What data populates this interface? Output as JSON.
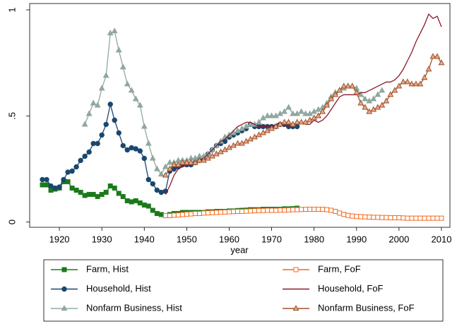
{
  "chart_data": {
    "type": "line",
    "x_label": "year",
    "xlim": [
      1913,
      2012
    ],
    "xticks": [
      1920,
      1930,
      1940,
      1950,
      1960,
      1970,
      1980,
      1990,
      2000,
      2010
    ],
    "ylim": [
      -0.025,
      1.03
    ],
    "yticks": [
      0,
      {
        "value": 0.5,
        "label": ".5"
      },
      1
    ],
    "legend": "bottom",
    "series": [
      {
        "name": "Farm, Hist",
        "color": "#1a7a1a",
        "marker": "square",
        "marker_fill": "#1a7a1a",
        "x": [
          1916,
          1917,
          1918,
          1919,
          1920,
          1921,
          1922,
          1923,
          1924,
          1925,
          1926,
          1927,
          1928,
          1929,
          1930,
          1931,
          1932,
          1933,
          1934,
          1935,
          1936,
          1937,
          1938,
          1939,
          1940,
          1941,
          1942,
          1943,
          1944,
          1945,
          1946,
          1947,
          1948,
          1949,
          1950,
          1951,
          1952,
          1953,
          1954,
          1955,
          1956,
          1957,
          1958,
          1959,
          1960,
          1961,
          1962,
          1963,
          1964,
          1965,
          1966,
          1967,
          1968,
          1969,
          1970,
          1971,
          1972,
          1973,
          1974,
          1975,
          1976
        ],
        "values": [
          0.175,
          0.175,
          0.15,
          0.155,
          0.16,
          0.19,
          0.19,
          0.16,
          0.15,
          0.14,
          0.125,
          0.13,
          0.13,
          0.12,
          0.13,
          0.14,
          0.17,
          0.16,
          0.135,
          0.12,
          0.1,
          0.095,
          0.1,
          0.09,
          0.08,
          0.075,
          0.055,
          0.04,
          0.035,
          0.03,
          0.035,
          0.04,
          0.04,
          0.045,
          0.045,
          0.045,
          0.045,
          0.045,
          0.045,
          0.048,
          0.048,
          0.05,
          0.05,
          0.05,
          0.052,
          0.052,
          0.054,
          0.055,
          0.056,
          0.058,
          0.058,
          0.058,
          0.06,
          0.06,
          0.06,
          0.06,
          0.06,
          0.062,
          0.062,
          0.063,
          0.065
        ]
      },
      {
        "name": "Household, Hist",
        "color": "#1a476f",
        "marker": "circle",
        "marker_fill": "#1a476f",
        "x": [
          1916,
          1917,
          1918,
          1919,
          1920,
          1921,
          1922,
          1923,
          1924,
          1925,
          1926,
          1927,
          1928,
          1929,
          1930,
          1931,
          1932,
          1933,
          1934,
          1935,
          1936,
          1937,
          1938,
          1939,
          1940,
          1941,
          1942,
          1943,
          1944,
          1945,
          1946,
          1947,
          1948,
          1949,
          1950,
          1951,
          1952,
          1953,
          1954,
          1955,
          1956,
          1957,
          1958,
          1959,
          1960,
          1961,
          1962,
          1963,
          1964,
          1965,
          1966,
          1967,
          1968,
          1969,
          1970,
          1971,
          1972,
          1973,
          1974,
          1975,
          1976
        ],
        "values": [
          0.2,
          0.2,
          0.17,
          0.16,
          0.165,
          0.2,
          0.235,
          0.24,
          0.26,
          0.29,
          0.31,
          0.33,
          0.37,
          0.37,
          0.41,
          0.46,
          0.555,
          0.48,
          0.42,
          0.36,
          0.34,
          0.35,
          0.345,
          0.335,
          0.3,
          0.2,
          0.18,
          0.15,
          0.14,
          0.145,
          0.24,
          0.25,
          0.26,
          0.27,
          0.27,
          0.27,
          0.28,
          0.29,
          0.3,
          0.32,
          0.34,
          0.36,
          0.37,
          0.38,
          0.4,
          0.41,
          0.42,
          0.43,
          0.44,
          0.46,
          0.45,
          0.45,
          0.45,
          0.45,
          0.45,
          0.45,
          0.46,
          0.46,
          0.45,
          0.45,
          0.45
        ]
      },
      {
        "name": "Nonfarm Business, Hist",
        "color": "#90a8a0",
        "marker": "triangle",
        "marker_fill": "#90a8a0",
        "x": [
          1926,
          1927,
          1928,
          1929,
          1930,
          1931,
          1932,
          1933,
          1934,
          1935,
          1936,
          1937,
          1938,
          1939,
          1940,
          1941,
          1942,
          1943,
          1944,
          1945,
          1946,
          1947,
          1948,
          1949,
          1950,
          1951,
          1952,
          1953,
          1954,
          1955,
          1956,
          1957,
          1958,
          1959,
          1960,
          1961,
          1962,
          1963,
          1964,
          1965,
          1966,
          1967,
          1968,
          1969,
          1970,
          1971,
          1972,
          1973,
          1974,
          1975,
          1976,
          1977,
          1978,
          1979,
          1980,
          1981,
          1982,
          1983,
          1984,
          1985,
          1986,
          1987,
          1988,
          1989,
          1990,
          1991,
          1992,
          1993,
          1994,
          1995,
          1996
        ],
        "values": [
          0.46,
          0.51,
          0.56,
          0.55,
          0.63,
          0.69,
          0.89,
          0.9,
          0.81,
          0.73,
          0.65,
          0.62,
          0.58,
          0.55,
          0.45,
          0.37,
          0.3,
          0.25,
          0.225,
          0.26,
          0.28,
          0.28,
          0.29,
          0.29,
          0.29,
          0.3,
          0.3,
          0.31,
          0.31,
          0.32,
          0.34,
          0.36,
          0.38,
          0.4,
          0.41,
          0.42,
          0.43,
          0.44,
          0.45,
          0.46,
          0.46,
          0.47,
          0.49,
          0.5,
          0.5,
          0.5,
          0.51,
          0.52,
          0.54,
          0.51,
          0.51,
          0.52,
          0.51,
          0.51,
          0.52,
          0.53,
          0.54,
          0.56,
          0.59,
          0.61,
          0.62,
          0.63,
          0.64,
          0.64,
          0.63,
          0.6,
          0.58,
          0.57,
          0.58,
          0.6,
          0.62
        ]
      },
      {
        "name": "Farm, FoF",
        "color": "#f36a1f",
        "marker": "square",
        "marker_fill": "#ffffff",
        "x": [
          1945,
          1946,
          1947,
          1948,
          1949,
          1950,
          1951,
          1952,
          1953,
          1954,
          1955,
          1956,
          1957,
          1958,
          1959,
          1960,
          1961,
          1962,
          1963,
          1964,
          1965,
          1966,
          1967,
          1968,
          1969,
          1970,
          1971,
          1972,
          1973,
          1974,
          1975,
          1976,
          1977,
          1978,
          1979,
          1980,
          1981,
          1982,
          1983,
          1984,
          1985,
          1986,
          1987,
          1988,
          1989,
          1990,
          1991,
          1992,
          1993,
          1994,
          1995,
          1996,
          1997,
          1998,
          1999,
          2000,
          2001,
          2002,
          2003,
          2004,
          2005,
          2006,
          2007,
          2008,
          2009,
          2010
        ],
        "values": [
          0.03,
          0.03,
          0.032,
          0.033,
          0.035,
          0.037,
          0.038,
          0.04,
          0.04,
          0.042,
          0.043,
          0.044,
          0.045,
          0.046,
          0.047,
          0.048,
          0.049,
          0.05,
          0.05,
          0.051,
          0.052,
          0.053,
          0.054,
          0.054,
          0.055,
          0.055,
          0.055,
          0.056,
          0.056,
          0.057,
          0.058,
          0.058,
          0.059,
          0.06,
          0.06,
          0.06,
          0.06,
          0.06,
          0.058,
          0.055,
          0.05,
          0.042,
          0.036,
          0.031,
          0.028,
          0.026,
          0.025,
          0.024,
          0.023,
          0.022,
          0.022,
          0.021,
          0.021,
          0.02,
          0.02,
          0.02,
          0.019,
          0.018,
          0.018,
          0.018,
          0.018,
          0.018,
          0.018,
          0.018,
          0.018,
          0.018
        ]
      },
      {
        "name": "Household, FoF",
        "color": "#8b1a2b",
        "marker": "none",
        "marker_fill": "#8b1a2b",
        "x": [
          1945,
          1946,
          1947,
          1948,
          1949,
          1950,
          1951,
          1952,
          1953,
          1954,
          1955,
          1956,
          1957,
          1958,
          1959,
          1960,
          1961,
          1962,
          1963,
          1964,
          1965,
          1966,
          1967,
          1968,
          1969,
          1970,
          1971,
          1972,
          1973,
          1974,
          1975,
          1976,
          1977,
          1978,
          1979,
          1980,
          1981,
          1982,
          1983,
          1984,
          1985,
          1986,
          1987,
          1988,
          1989,
          1990,
          1991,
          1992,
          1993,
          1994,
          1995,
          1996,
          1997,
          1998,
          1999,
          2000,
          2001,
          2002,
          2003,
          2004,
          2005,
          2006,
          2007,
          2008,
          2009,
          2010
        ],
        "values": [
          0.13,
          0.17,
          0.22,
          0.25,
          0.26,
          0.27,
          0.27,
          0.28,
          0.29,
          0.3,
          0.32,
          0.34,
          0.36,
          0.38,
          0.39,
          0.41,
          0.43,
          0.45,
          0.46,
          0.47,
          0.47,
          0.46,
          0.45,
          0.45,
          0.45,
          0.45,
          0.46,
          0.47,
          0.46,
          0.45,
          0.46,
          0.47,
          0.47,
          0.46,
          0.46,
          0.48,
          0.47,
          0.48,
          0.5,
          0.53,
          0.56,
          0.59,
          0.6,
          0.6,
          0.6,
          0.6,
          0.61,
          0.61,
          0.62,
          0.63,
          0.64,
          0.65,
          0.66,
          0.66,
          0.67,
          0.69,
          0.72,
          0.76,
          0.8,
          0.85,
          0.89,
          0.93,
          0.98,
          0.96,
          0.97,
          0.92
        ]
      },
      {
        "name": "Nonfarm Business, FoF",
        "color": "#a0522d",
        "marker": "triangle",
        "marker_fill": "#e8a888",
        "x": [
          1945,
          1946,
          1947,
          1948,
          1949,
          1950,
          1951,
          1952,
          1953,
          1954,
          1955,
          1956,
          1957,
          1958,
          1959,
          1960,
          1961,
          1962,
          1963,
          1964,
          1965,
          1966,
          1967,
          1968,
          1969,
          1970,
          1971,
          1972,
          1973,
          1974,
          1975,
          1976,
          1977,
          1978,
          1979,
          1980,
          1981,
          1982,
          1983,
          1984,
          1985,
          1986,
          1987,
          1988,
          1989,
          1990,
          1991,
          1992,
          1993,
          1994,
          1995,
          1996,
          1997,
          1998,
          1999,
          2000,
          2001,
          2002,
          2003,
          2004,
          2005,
          2006,
          2007,
          2008,
          2009,
          2010
        ],
        "values": [
          0.22,
          0.25,
          0.27,
          0.27,
          0.28,
          0.28,
          0.28,
          0.28,
          0.29,
          0.29,
          0.3,
          0.31,
          0.32,
          0.33,
          0.34,
          0.35,
          0.36,
          0.37,
          0.37,
          0.38,
          0.39,
          0.4,
          0.41,
          0.42,
          0.43,
          0.44,
          0.45,
          0.46,
          0.47,
          0.47,
          0.46,
          0.47,
          0.47,
          0.47,
          0.48,
          0.49,
          0.5,
          0.52,
          0.55,
          0.58,
          0.6,
          0.62,
          0.64,
          0.64,
          0.64,
          0.61,
          0.56,
          0.54,
          0.52,
          0.53,
          0.54,
          0.55,
          0.57,
          0.6,
          0.62,
          0.64,
          0.66,
          0.66,
          0.65,
          0.65,
          0.65,
          0.68,
          0.72,
          0.78,
          0.78,
          0.75
        ]
      }
    ]
  }
}
